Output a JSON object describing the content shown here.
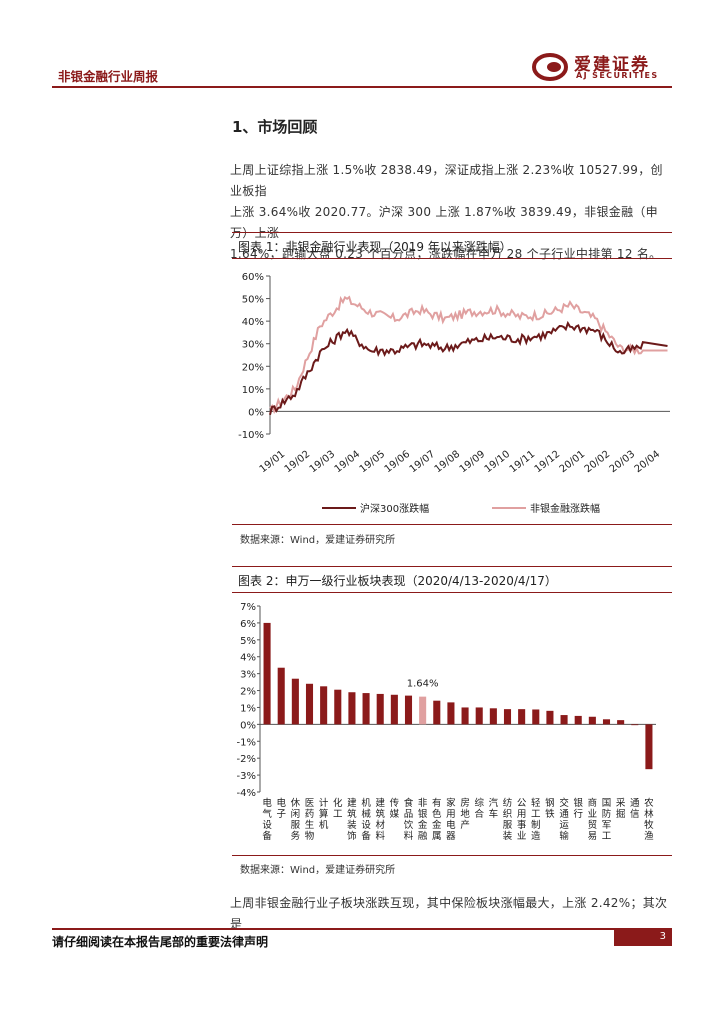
{
  "header": {
    "report_title": "非银金融行业周报",
    "logo_cn": "爱建证券",
    "logo_en": "AJ SECURITIES"
  },
  "section": {
    "title": "1、市场回顾"
  },
  "paragraph1": [
    "上周上证综指上涨 1.5%收 2838.49，深证成指上涨 2.23%收 10527.99，创业板指",
    "上涨 3.64%收 2020.77。沪深 300 上涨 1.87%收 3839.49，非银金融（申万）上涨",
    "1.64%，跑输大盘 0.23 个百分点，涨跌幅在申万 28 个子行业中排第 12 名。"
  ],
  "figure1": {
    "title": "图表 1：非银金融行业表现（2019 年以来涨跌幅）",
    "source": "数据来源：Wind，爱建证券研究所"
  },
  "figure2": {
    "title": "图表 2：申万一级行业板块表现（2020/4/13-2020/4/17）",
    "source": "数据来源：Wind，爱建证券研究所",
    "highlight_label": "1.64%"
  },
  "paragraph2": "上周非银金融行业子板块涨跌互现，其中保险板块涨幅最大，上涨 2.42%；其次是",
  "footer": {
    "disclaimer": "请仔细阅读在本报告尾部的重要法律声明",
    "page": "3"
  },
  "chart_data": [
    {
      "type": "line",
      "x": [
        "19/01",
        "19/02",
        "19/03",
        "19/04",
        "19/05",
        "19/06",
        "19/07",
        "19/08",
        "19/09",
        "19/10",
        "19/11",
        "19/12",
        "20/01",
        "20/02",
        "20/03",
        "20/04"
      ],
      "ylim": [
        -10,
        60
      ],
      "yticks": [
        "-10%",
        "0%",
        "10%",
        "20%",
        "30%",
        "40%",
        "50%",
        "60%"
      ],
      "series": [
        {
          "name": "沪深300涨跌幅",
          "color": "#6b1a1a",
          "values": [
            0,
            8,
            26,
            36,
            27,
            27,
            30,
            28,
            31,
            33,
            32,
            34,
            38,
            36,
            26,
            29
          ]
        },
        {
          "name": "非银金融涨跌幅",
          "color": "#e0a0a0",
          "values": [
            0,
            10,
            38,
            50,
            44,
            41,
            45,
            41,
            44,
            45,
            42,
            43,
            47,
            41,
            28,
            27
          ]
        }
      ]
    },
    {
      "type": "bar",
      "ylim": [
        -4,
        7
      ],
      "yticks": [
        "-4%",
        "-3%",
        "-2%",
        "-1%",
        "0%",
        "1%",
        "2%",
        "3%",
        "4%",
        "5%",
        "6%",
        "7%"
      ],
      "categories": [
        "电气设备",
        "电子",
        "休闲服务",
        "医药生物",
        "计算机",
        "化工",
        "建筑装饰",
        "机械设备",
        "建筑材料",
        "传媒",
        "食品饮料",
        "非银金融",
        "有色金属",
        "家用电器",
        "房地产",
        "综合",
        "汽车",
        "纺织服装",
        "公用事业",
        "轻工制造",
        "钢铁",
        "交通运输",
        "银行",
        "商业贸易",
        "国防军工",
        "采掘",
        "通信",
        "农林牧渔"
      ],
      "values": [
        6.0,
        3.35,
        2.7,
        2.4,
        2.25,
        2.05,
        1.9,
        1.85,
        1.8,
        1.75,
        1.7,
        1.64,
        1.4,
        1.3,
        1.0,
        1.0,
        0.95,
        0.9,
        0.9,
        0.88,
        0.8,
        0.55,
        0.5,
        0.45,
        0.3,
        0.25,
        -0.02,
        -2.65
      ],
      "bar_color": "#8b1a1a",
      "highlight_index": 11,
      "highlight_color": "#e0a0a0"
    }
  ]
}
